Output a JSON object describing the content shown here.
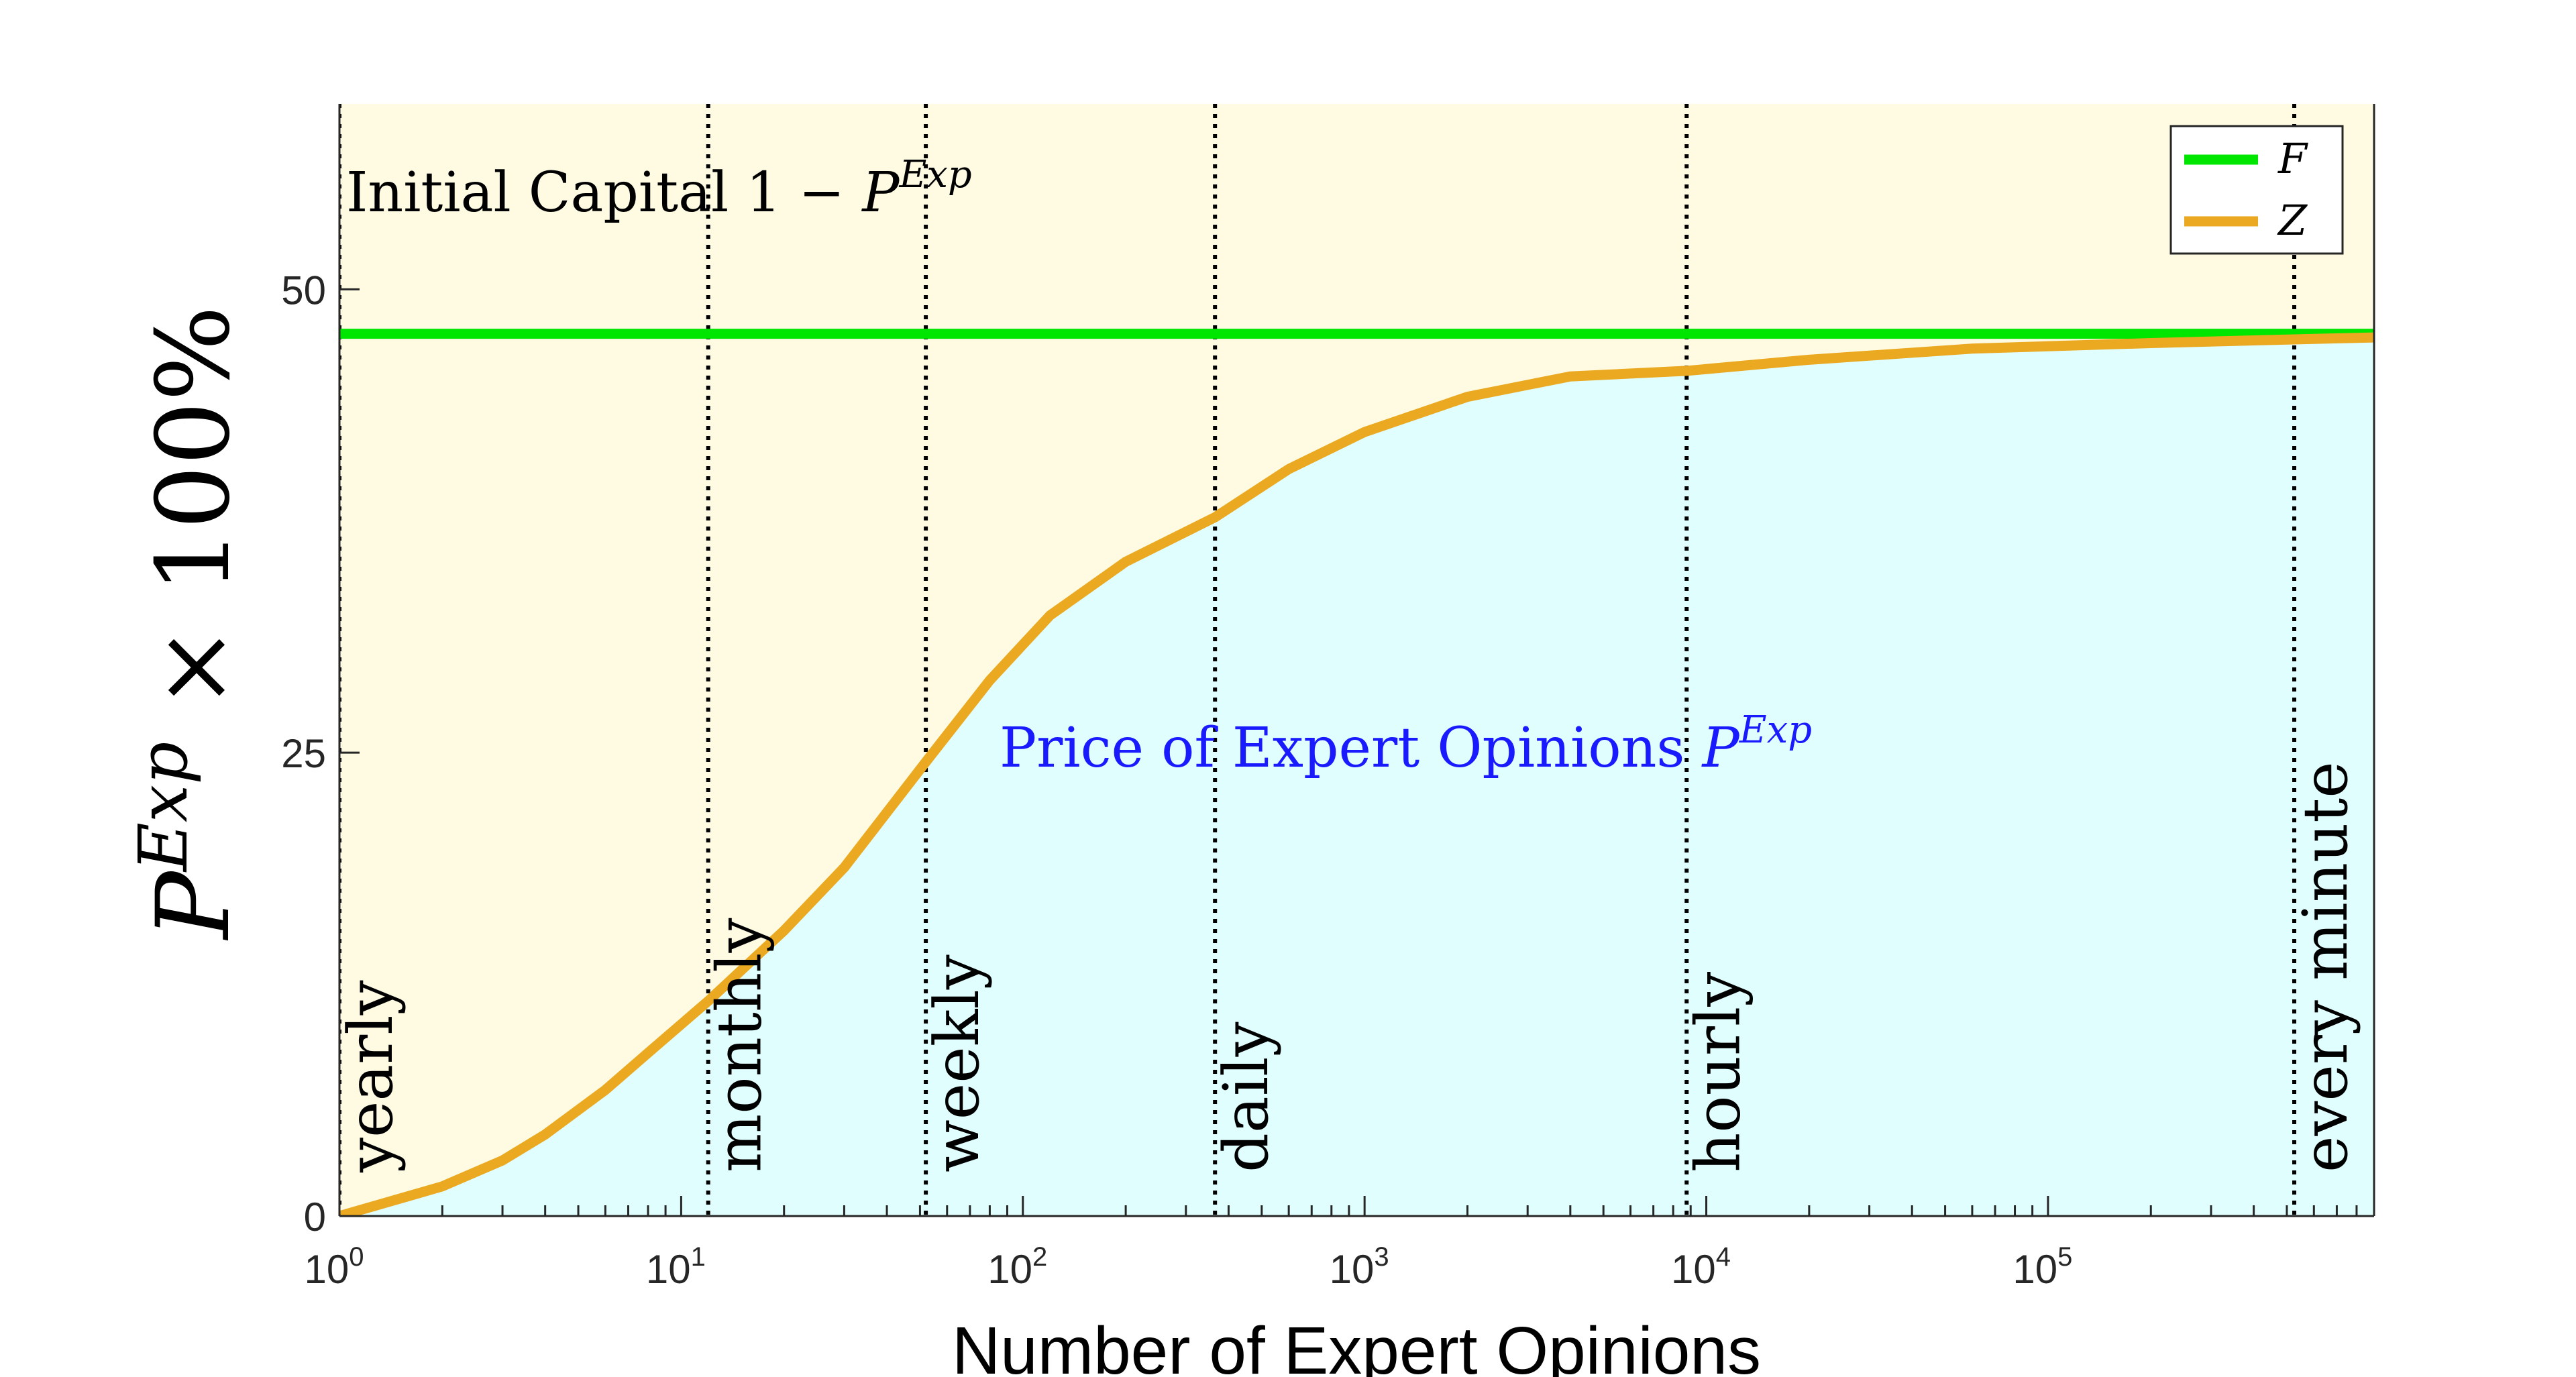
{
  "chart_data": {
    "type": "area",
    "x_scale": "log",
    "xlabel": "Number of Expert Opinions",
    "ylabel": {
      "base": "P",
      "sup": "Exp",
      "rest": " × 100%"
    },
    "xlim": [
      1,
      900000
    ],
    "ylim": [
      0,
      60
    ],
    "x_ticks": [
      {
        "value": 1,
        "base": "10",
        "exp": "0"
      },
      {
        "value": 10,
        "base": "10",
        "exp": "1"
      },
      {
        "value": 100,
        "base": "10",
        "exp": "2"
      },
      {
        "value": 1000,
        "base": "10",
        "exp": "3"
      },
      {
        "value": 10000,
        "base": "10",
        "exp": "4"
      },
      {
        "value": 100000,
        "base": "10",
        "exp": "5"
      }
    ],
    "y_ticks": [
      {
        "value": 0,
        "label": "0"
      },
      {
        "value": 25,
        "label": "25"
      },
      {
        "value": 50,
        "label": "50"
      }
    ],
    "series": [
      {
        "name": "F",
        "color": "#00e600",
        "x": [
          1,
          900000
        ],
        "y": [
          47.6,
          47.6
        ]
      },
      {
        "name": "Z",
        "color": "#eaa921",
        "x": [
          1,
          2,
          3,
          4,
          6,
          8,
          12,
          20,
          30,
          52,
          80,
          120,
          200,
          365,
          600,
          1000,
          2000,
          4000,
          8760,
          20000,
          60000,
          200000,
          525600,
          900000
        ],
        "y": [
          0,
          1.6,
          3.0,
          4.4,
          6.8,
          8.8,
          11.6,
          15.4,
          18.8,
          24.5,
          28.9,
          32.4,
          35.3,
          37.7,
          40.3,
          42.3,
          44.2,
          45.3,
          45.6,
          46.2,
          46.8,
          47.1,
          47.3,
          47.4
        ]
      }
    ],
    "events": [
      {
        "x": 1,
        "label": "yearly"
      },
      {
        "x": 12,
        "label": "monthly"
      },
      {
        "x": 52,
        "label": "weekly"
      },
      {
        "x": 365,
        "label": "daily"
      },
      {
        "x": 8760,
        "label": "hourly"
      },
      {
        "x": 525600,
        "label": "every minute"
      }
    ],
    "annotations": {
      "capital": {
        "text": "Initial Capital 1 − ",
        "sym": "P",
        "sup": "Exp"
      },
      "price": {
        "text": "Price of Expert Opinions ",
        "sym": "P",
        "sup": "Exp"
      }
    },
    "fill_colors": {
      "above": "#fffbe2",
      "below": "#e1feff"
    },
    "legend": {
      "position": "top-right",
      "entries": [
        "F",
        "Z"
      ]
    },
    "grid": false
  }
}
